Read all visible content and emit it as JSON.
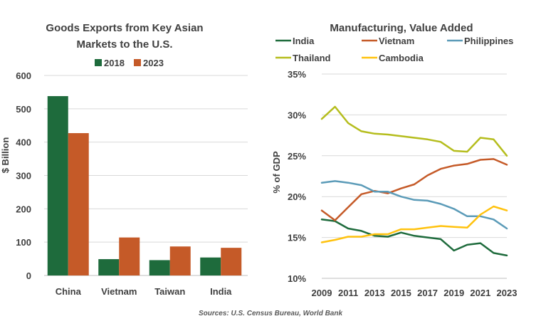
{
  "chart_data": [
    {
      "type": "bar",
      "title_lines": [
        "Goods Exports from Key Asian",
        "Markets to the U.S."
      ],
      "ylabel": "$ Billion",
      "ylim": [
        0,
        600
      ],
      "yticks": [
        "0",
        "100",
        "200",
        "300",
        "400",
        "500",
        "600"
      ],
      "categories": [
        "China",
        "Vietnam",
        "Taiwan",
        "India"
      ],
      "series": [
        {
          "name": "2018",
          "color": "#1e6b3c",
          "values": [
            538,
            49,
            46,
            54
          ]
        },
        {
          "name": "2023",
          "color": "#c55a28",
          "values": [
            427,
            114,
            87,
            83
          ]
        }
      ],
      "legend_position": "top",
      "grid": true
    },
    {
      "type": "line",
      "title": "Manufacturing, Value Added",
      "ylabel": "% of GDP",
      "ylim": [
        10,
        35
      ],
      "yticks": [
        "10%",
        "15%",
        "20%",
        "25%",
        "30%",
        "35%"
      ],
      "x": [
        2009,
        2010,
        2011,
        2012,
        2013,
        2014,
        2015,
        2016,
        2017,
        2018,
        2019,
        2020,
        2021,
        2022,
        2023
      ],
      "xticks": [
        "2009",
        "2011",
        "2013",
        "2015",
        "2017",
        "2019",
        "2021",
        "2023"
      ],
      "series": [
        {
          "name": "India",
          "color": "#1e6b3c",
          "values": [
            17.2,
            17.0,
            16.1,
            15.8,
            15.2,
            15.1,
            15.6,
            15.2,
            15.0,
            14.8,
            13.4,
            14.1,
            14.3,
            13.1,
            12.8
          ]
        },
        {
          "name": "Vietnam",
          "color": "#c55a28",
          "values": [
            18.3,
            17.1,
            18.7,
            20.3,
            20.7,
            20.4,
            21.0,
            21.5,
            22.6,
            23.4,
            23.8,
            24.0,
            24.5,
            24.6,
            23.9
          ]
        },
        {
          "name": "Philippines",
          "color": "#5b9bb8",
          "values": [
            21.7,
            21.9,
            21.7,
            21.4,
            20.6,
            20.6,
            20.0,
            19.6,
            19.5,
            19.1,
            18.5,
            17.6,
            17.6,
            17.2,
            16.1
          ]
        },
        {
          "name": "Thailand",
          "color": "#b5bd1d",
          "values": [
            29.5,
            31.0,
            29.0,
            28.0,
            27.7,
            27.6,
            27.4,
            27.2,
            27.0,
            26.7,
            25.6,
            25.5,
            27.2,
            27.0,
            25.0
          ]
        },
        {
          "name": "Cambodia",
          "color": "#ffc20e",
          "values": [
            14.4,
            14.7,
            15.1,
            15.1,
            15.4,
            15.4,
            16.0,
            16.0,
            16.2,
            16.4,
            16.3,
            16.2,
            17.8,
            18.8,
            18.3
          ]
        }
      ],
      "legend_position": "top",
      "grid": true
    }
  ],
  "footer": {
    "source": "Sources: U.S. Census Bureau, World Bank"
  }
}
